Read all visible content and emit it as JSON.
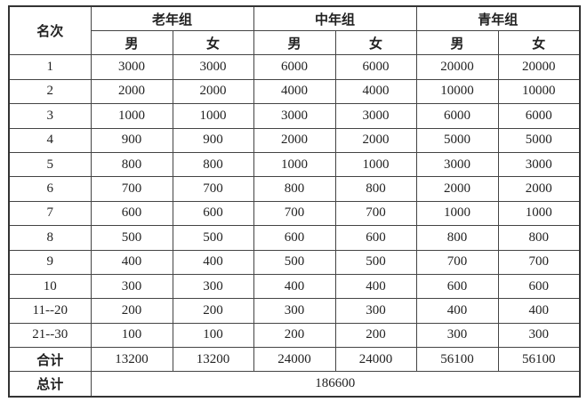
{
  "header": {
    "rank_label": "名次",
    "groups": [
      "老年组",
      "中年组",
      "青年组"
    ],
    "genders": [
      "男",
      "女",
      "男",
      "女",
      "男",
      "女"
    ]
  },
  "rows": [
    {
      "rank": "1",
      "values": [
        "3000",
        "3000",
        "6000",
        "6000",
        "20000",
        "20000"
      ]
    },
    {
      "rank": "2",
      "values": [
        "2000",
        "2000",
        "4000",
        "4000",
        "10000",
        "10000"
      ]
    },
    {
      "rank": "3",
      "values": [
        "1000",
        "1000",
        "3000",
        "3000",
        "6000",
        "6000"
      ]
    },
    {
      "rank": "4",
      "values": [
        "900",
        "900",
        "2000",
        "2000",
        "5000",
        "5000"
      ]
    },
    {
      "rank": "5",
      "values": [
        "800",
        "800",
        "1000",
        "1000",
        "3000",
        "3000"
      ]
    },
    {
      "rank": "6",
      "values": [
        "700",
        "700",
        "800",
        "800",
        "2000",
        "2000"
      ]
    },
    {
      "rank": "7",
      "values": [
        "600",
        "600",
        "700",
        "700",
        "1000",
        "1000"
      ]
    },
    {
      "rank": "8",
      "values": [
        "500",
        "500",
        "600",
        "600",
        "800",
        "800"
      ]
    },
    {
      "rank": "9",
      "values": [
        "400",
        "400",
        "500",
        "500",
        "700",
        "700"
      ]
    },
    {
      "rank": "10",
      "values": [
        "300",
        "300",
        "400",
        "400",
        "600",
        "600"
      ]
    },
    {
      "rank": "11--20",
      "values": [
        "200",
        "200",
        "300",
        "300",
        "400",
        "400"
      ]
    },
    {
      "rank": "21--30",
      "values": [
        "100",
        "100",
        "200",
        "200",
        "300",
        "300"
      ]
    }
  ],
  "subtotal": {
    "label": "合计",
    "values": [
      "13200",
      "13200",
      "24000",
      "24000",
      "56100",
      "56100"
    ]
  },
  "total": {
    "label": "总计",
    "value": "186600"
  }
}
